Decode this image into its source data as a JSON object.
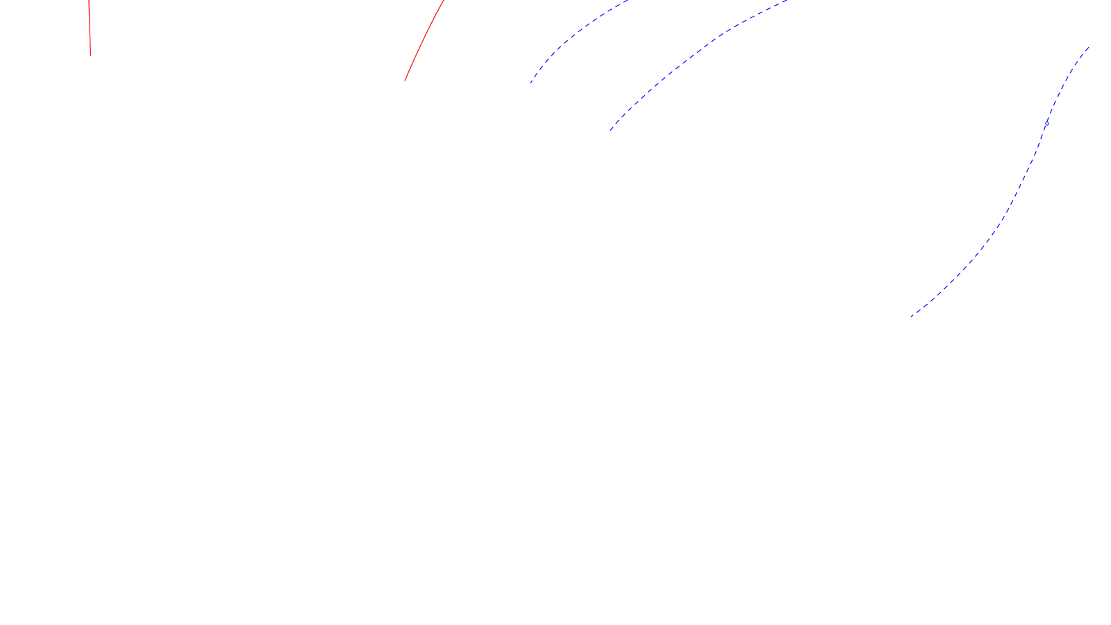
{
  "canvas": {
    "background": "#ffffff"
  },
  "strokes": [
    {
      "name": "red-solid-stroke-vertical",
      "style": "solid",
      "color": "#ff0000"
    },
    {
      "name": "red-solid-stroke-diagonal",
      "style": "solid",
      "color": "#ff0000"
    },
    {
      "name": "blue-dashed-stroke-upper-left",
      "style": "dashed",
      "color": "#0000ff"
    },
    {
      "name": "blue-dashed-stroke-middle",
      "style": "dashed",
      "color": "#0000ff"
    },
    {
      "name": "blue-dashed-stroke-right",
      "style": "dashed",
      "color": "#0000ff"
    }
  ]
}
